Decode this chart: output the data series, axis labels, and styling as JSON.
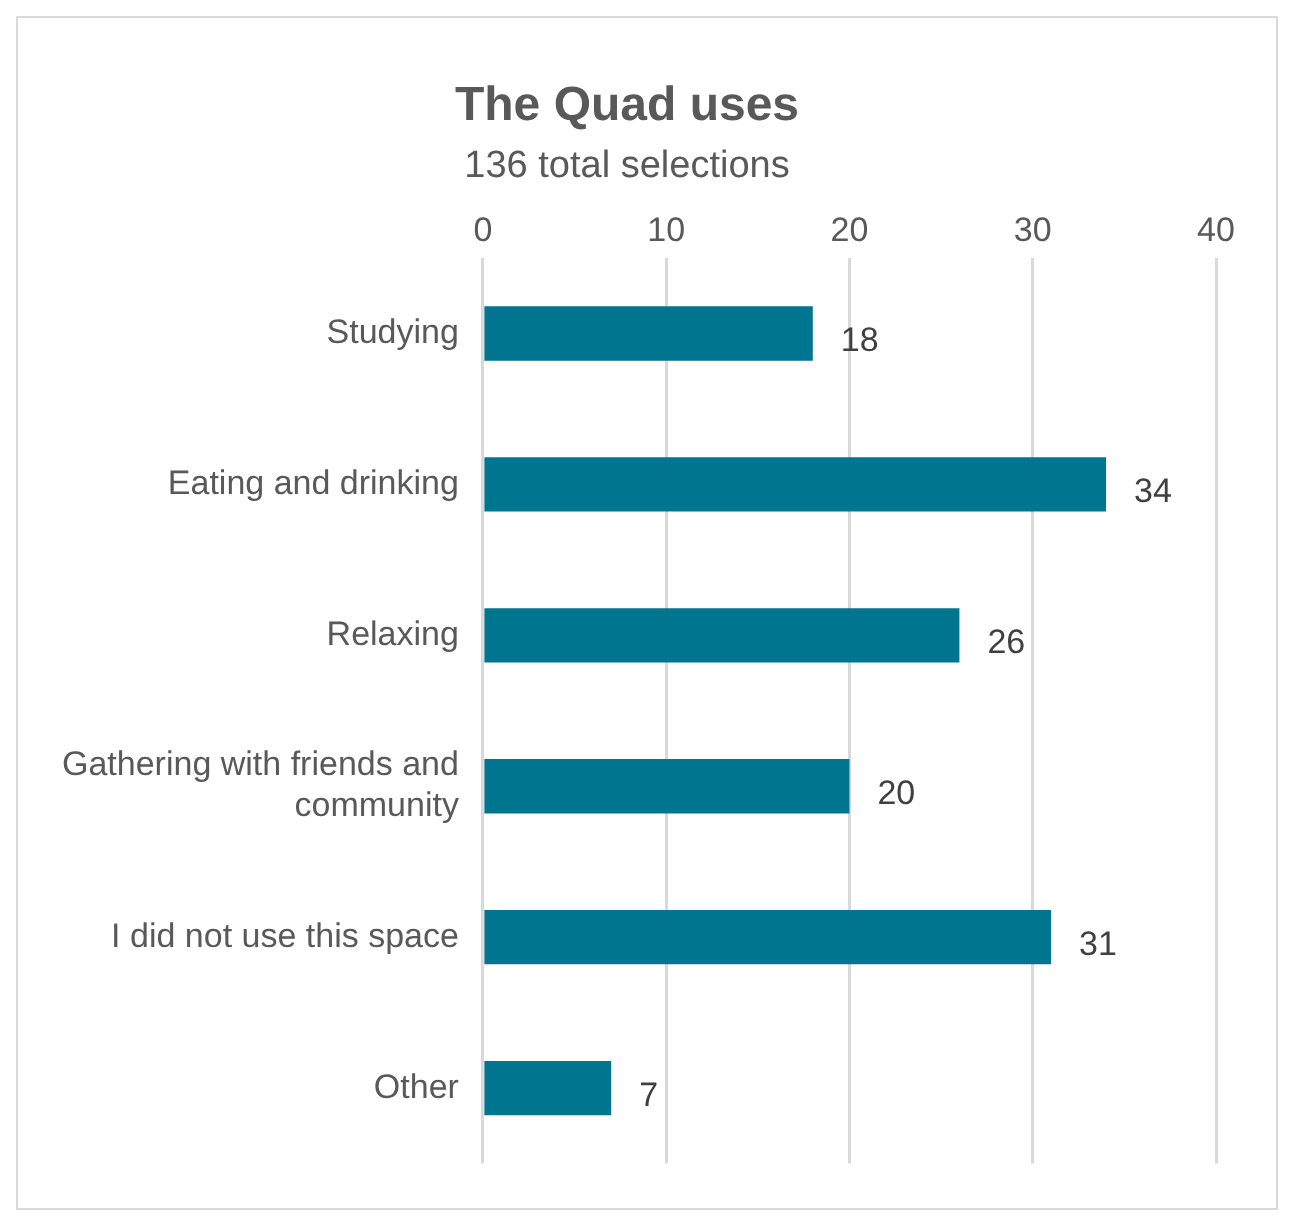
{
  "chart_data": {
    "type": "bar",
    "orientation": "horizontal",
    "title": "The Quad uses",
    "subtitle": "136 total selections",
    "categories": [
      "Studying",
      "Eating and drinking",
      "Relaxing",
      "Gathering with friends and community",
      "I did not use this space",
      "Other"
    ],
    "values": [
      18,
      34,
      26,
      20,
      31,
      7
    ],
    "color": "#00758f",
    "xlim": [
      0,
      40
    ],
    "xticks": [
      0,
      10,
      20,
      30,
      40
    ],
    "grid": "x",
    "data_labels": true,
    "legend": false
  }
}
